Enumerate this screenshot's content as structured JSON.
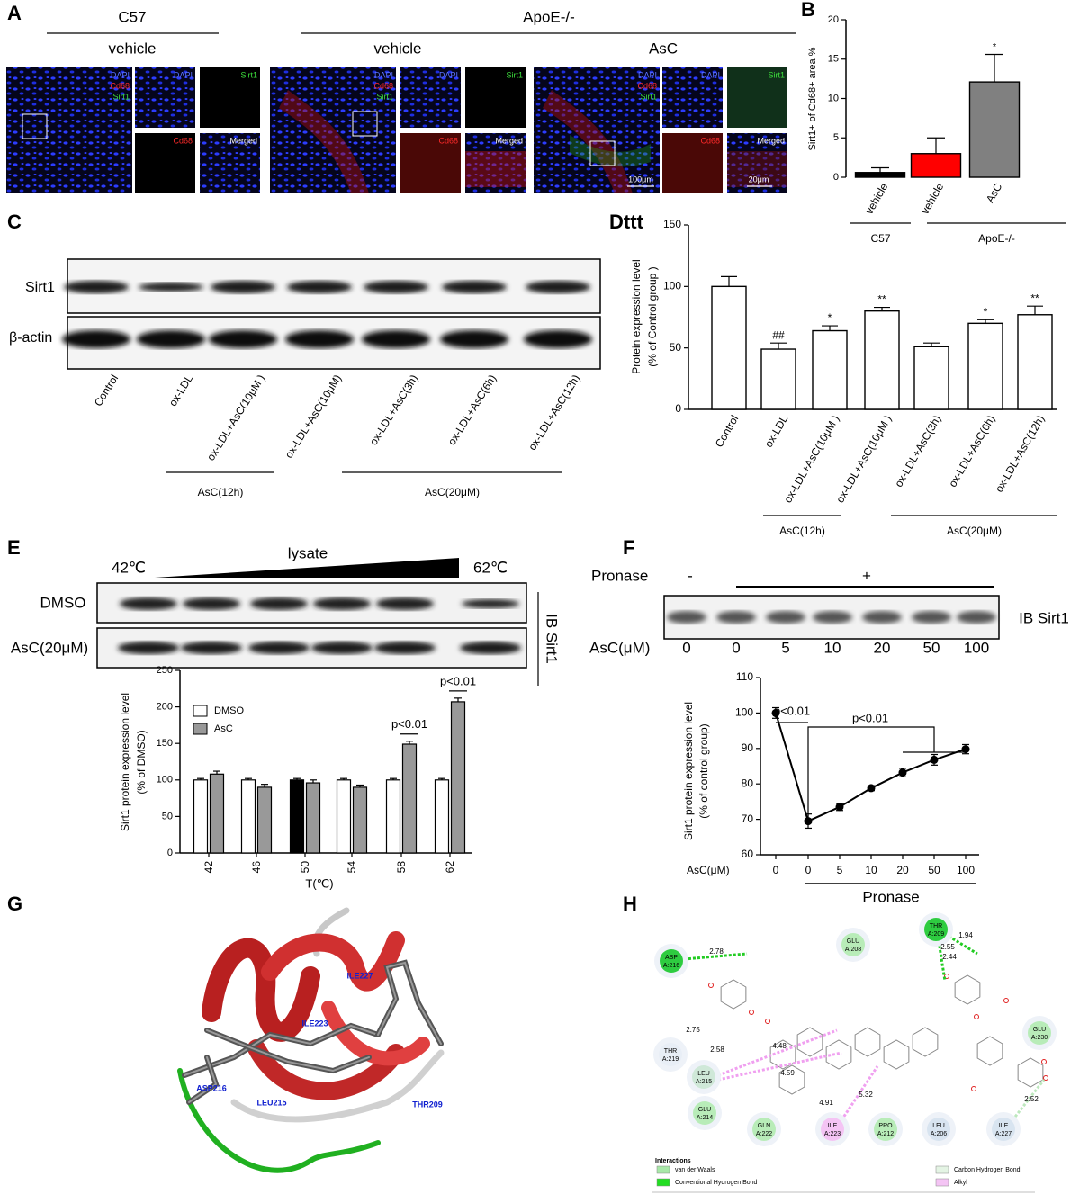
{
  "panel_labels": {
    "a": "A",
    "b": "B",
    "c": "C",
    "d": "Dttt",
    "e": "E",
    "f": "F",
    "g": "G",
    "h": "H"
  },
  "panel_a": {
    "strains": [
      "C57",
      "ApoE-/-"
    ],
    "treatments": [
      "vehicle",
      "vehicle",
      "AsC"
    ],
    "stains": [
      "DAPI",
      "Cd68",
      "Sirt1"
    ],
    "tiles": [
      "DAPI",
      "Sirt1",
      "Cd68",
      "Merged"
    ],
    "scale_bars": [
      "100μm",
      "20μm"
    ]
  },
  "panel_c": {
    "rows": [
      "Sirt1",
      "β-actin"
    ],
    "lanes": [
      "Control",
      "ox-LDL",
      "ox-LDL+AsC(10μM )",
      "ox-LDL+AsC(10μM)",
      "ox-LDL+AsC(3h)",
      "ox-LDL+AsC(6h)",
      "ox-LDL+AsC(12h)"
    ],
    "groups": [
      "AsC(12h)",
      "AsC(20μM)"
    ]
  },
  "panel_e": {
    "temps": [
      "42℃",
      "62℃"
    ],
    "gradient": "lysate",
    "rows": [
      "DMSO",
      "AsC(20μM)"
    ],
    "probe": "IB Sirt1"
  },
  "panel_f": {
    "treatment": "Pronase",
    "signs": [
      "-",
      "+"
    ],
    "probe": "IB Sirt1",
    "dose_label": "AsC(μM)",
    "lanes": [
      "0",
      "0",
      "5",
      "10",
      "20",
      "50",
      "100"
    ]
  },
  "panel_g": {
    "residues": [
      "ILE227",
      "ILE223",
      "ASP216",
      "LEU215",
      "THR209"
    ]
  },
  "panel_h": {
    "residues": [
      {
        "name": "THR",
        "chain": "A:209"
      },
      {
        "name": "GLU",
        "chain": "A:208"
      },
      {
        "name": "ASP",
        "chain": "A:216"
      },
      {
        "name": "GLU",
        "chain": "A:230"
      },
      {
        "name": "THR",
        "chain": "A:219"
      },
      {
        "name": "LEU",
        "chain": "A:215"
      },
      {
        "name": "GLU",
        "chain": "A:214"
      },
      {
        "name": "GLN",
        "chain": "A:222"
      },
      {
        "name": "ILE",
        "chain": "A:223"
      },
      {
        "name": "PRO",
        "chain": "A:212"
      },
      {
        "name": "LEU",
        "chain": "A:206"
      },
      {
        "name": "ILE",
        "chain": "A:227"
      }
    ],
    "distances": [
      "1.94",
      "2.55",
      "2.44",
      "2.78",
      "2.75",
      "2.58",
      "4.48",
      "4.59",
      "5.32",
      "4.91",
      "2.52"
    ],
    "legend_title": "Interactions",
    "legend": [
      "van der Waals",
      "Conventional Hydrogen Bond",
      "Carbon Hydrogen Bond",
      "Alkyl"
    ]
  },
  "chart_data": [
    {
      "type": "bar",
      "ylabel": "Sirt1+ of Cd68+ area %",
      "categories": [
        "vehicle",
        "vehicle",
        "AsC"
      ],
      "groups": [
        "C57",
        "ApoE-/-"
      ],
      "values": [
        0.6,
        3.0,
        12.1
      ],
      "errors": [
        0.6,
        2.0,
        3.5
      ],
      "colors": [
        "#000000",
        "#ff0000",
        "#808080"
      ],
      "significance": [
        null,
        null,
        "*"
      ],
      "ylim": [
        0,
        20
      ],
      "yticks": [
        0,
        5,
        10,
        15,
        20
      ]
    },
    {
      "type": "bar",
      "ylabel": [
        "Protein expression level",
        "(% of Control group )"
      ],
      "categories": [
        "Control",
        "ox-LDL",
        "ox-LDL+AsC(10μM )",
        "ox-LDL+AsC(10μM )",
        "ox-LDL+AsC(3h)",
        "ox-LDL+AsC(6h)",
        "ox-LDL+AsC(12h)"
      ],
      "groups": [
        "AsC(12h)",
        "AsC(20μM)"
      ],
      "values": [
        100,
        49,
        64,
        80,
        51,
        70,
        77
      ],
      "errors": [
        8,
        5,
        4,
        3,
        3,
        3,
        7
      ],
      "color": "#ffffff",
      "significance": [
        null,
        "##",
        "*",
        "**",
        null,
        "*",
        "**"
      ],
      "ylim": [
        0,
        150
      ],
      "yticks": [
        0,
        50,
        100,
        150
      ]
    },
    {
      "type": "grouped_bar",
      "ylabel": [
        "Sirt1 protein expression level",
        "(% of DMSO)"
      ],
      "xlabel": "T(℃)",
      "categories": [
        "42",
        "46",
        "50",
        "54",
        "58",
        "62"
      ],
      "series": [
        {
          "name": "DMSO",
          "color": "#ffffff",
          "colors": [
            "#ffffff",
            "#ffffff",
            "#000000",
            "#ffffff",
            "#ffffff",
            "#ffffff"
          ],
          "values": [
            100,
            100,
            100,
            100,
            100,
            100
          ],
          "errors": [
            2,
            2,
            2,
            2,
            2,
            2
          ]
        },
        {
          "name": "AsC",
          "color": "#999999",
          "values": [
            108,
            90,
            96,
            90,
            149,
            207
          ],
          "errors": [
            4,
            4,
            4,
            3,
            4,
            5
          ]
        }
      ],
      "annotations": [
        null,
        null,
        null,
        null,
        "p<0.01",
        "p<0.01"
      ],
      "ylim": [
        0,
        250
      ],
      "yticks": [
        0,
        50,
        100,
        150,
        200,
        250
      ]
    },
    {
      "type": "line",
      "ylabel": [
        "Sirt1 protein expression level",
        "(% of control group)"
      ],
      "xlabel": "AsC(μM)",
      "categories": [
        "0",
        "0",
        "5",
        "10",
        "20",
        "50",
        "100"
      ],
      "values": [
        100,
        69.5,
        73.5,
        78.8,
        83.2,
        86.8,
        89.8
      ],
      "errors": [
        1.5,
        2,
        1,
        0.7,
        1.2,
        1.5,
        1.3
      ],
      "color": "#000000",
      "footer": "Pronase",
      "annotations": [
        "p<0.01",
        "p<0.01"
      ],
      "ylim": [
        60,
        110
      ],
      "yticks": [
        60,
        70,
        80,
        90,
        100,
        110
      ]
    }
  ]
}
